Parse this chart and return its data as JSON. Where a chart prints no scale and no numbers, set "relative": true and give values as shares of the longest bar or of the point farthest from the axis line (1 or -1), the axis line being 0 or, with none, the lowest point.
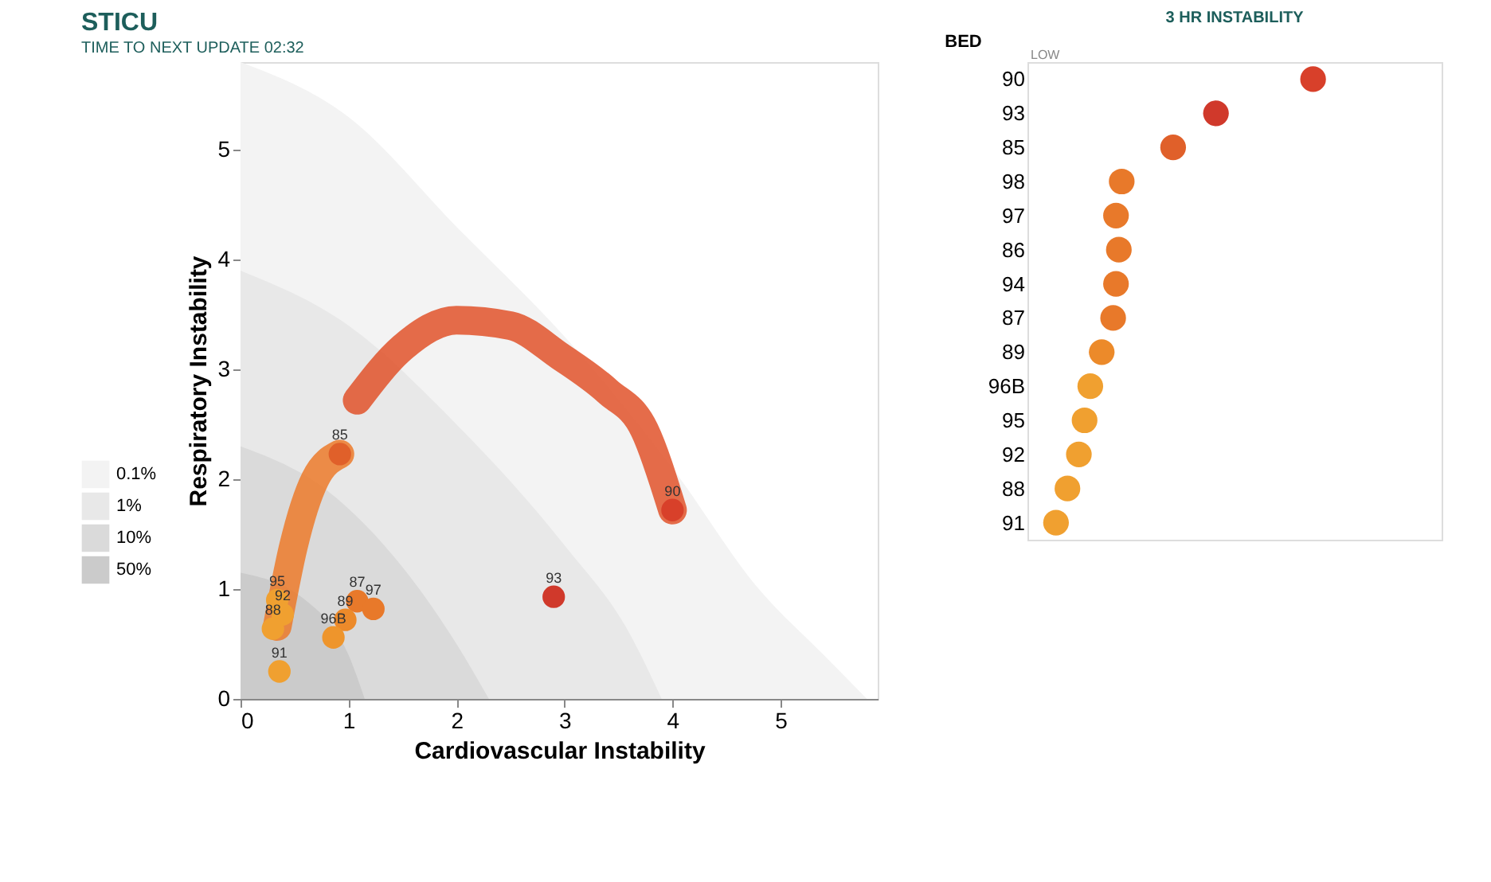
{
  "chart_data": [
    {
      "type": "scatter",
      "title": "STICU",
      "subtitle": "TIME TO NEXT UPDATE 02:32",
      "xlabel": "Cardiovascular Instability",
      "ylabel": "Respiratory Instability",
      "xlim": [
        0,
        5.9
      ],
      "ylim": [
        0,
        5.8
      ],
      "xticks": [
        0,
        1,
        2,
        3,
        4,
        5
      ],
      "yticks": [
        0,
        1,
        2,
        3,
        4,
        5
      ],
      "grid": false,
      "legend": "bottom left",
      "series": [
        {
          "name": "0.1%",
          "type": "area",
          "color": "#f3f3f3",
          "x": [
            0,
            1,
            2,
            3,
            4,
            4.8,
            5.4,
            5.8
          ],
          "values": [
            5.8,
            5.3,
            4.3,
            3.3,
            2.1,
            1.0,
            0.4,
            0
          ]
        },
        {
          "name": "1%",
          "type": "area",
          "color": "#e8e8e8",
          "x": [
            0,
            1,
            2,
            3,
            3.6,
            3.9
          ],
          "values": [
            3.9,
            3.4,
            2.5,
            1.4,
            0.6,
            0
          ]
        },
        {
          "name": "10%",
          "type": "area",
          "color": "#dadada",
          "x": [
            0,
            0.8,
            1.5,
            2.0,
            2.3
          ],
          "values": [
            2.3,
            1.9,
            1.2,
            0.5,
            0
          ]
        },
        {
          "name": "50%",
          "type": "area",
          "color": "#cbcbcb",
          "x": [
            0,
            0.6,
            1.0,
            1.15
          ],
          "values": [
            1.15,
            0.9,
            0.4,
            0
          ]
        },
        {
          "type": "line",
          "color": "#e0522a",
          "x": [
            1.08,
            1.5,
            2.0,
            2.5,
            2.96,
            3.4,
            3.74,
            4.0
          ],
          "values": [
            2.72,
            3.2,
            3.45,
            3.4,
            3.12,
            2.8,
            2.45,
            1.72
          ]
        },
        {
          "type": "line",
          "color": "#ec7a2a",
          "x": [
            0.34,
            0.49,
            0.69,
            0.92
          ],
          "values": [
            0.66,
            1.39,
            2.0,
            2.23
          ]
        },
        {
          "type": "scatter",
          "x": [
            4.0,
            2.9,
            0.92,
            1.08,
            1.23,
            0.97,
            0.86,
            0.34,
            0.39,
            0.3,
            0.36
          ],
          "values": [
            1.72,
            0.93,
            2.23,
            0.89,
            0.82,
            0.72,
            0.56,
            0.9,
            0.77,
            0.64,
            0.25
          ],
          "colors": [
            "#d8402a",
            "#d0392b",
            "#e0602a",
            "#e8792a",
            "#e8792a",
            "#ec8a2a",
            "#ee952c",
            "#f0a030",
            "#f0a030",
            "#f0a030",
            "#f0a030"
          ]
        }
      ],
      "annotations": [
        {
          "text": "90",
          "x": 4.0,
          "y": 1.72
        },
        {
          "text": "93",
          "x": 2.9,
          "y": 0.93
        },
        {
          "text": "85",
          "x": 0.92,
          "y": 2.23
        },
        {
          "text": "87",
          "x": 1.08,
          "y": 0.89
        },
        {
          "text": "97",
          "x": 1.23,
          "y": 0.82
        },
        {
          "text": "89",
          "x": 0.97,
          "y": 0.72
        },
        {
          "text": "96B",
          "x": 0.86,
          "y": 0.56
        },
        {
          "text": "95",
          "x": 0.34,
          "y": 0.9
        },
        {
          "text": "92",
          "x": 0.39,
          "y": 0.77
        },
        {
          "text": "88",
          "x": 0.3,
          "y": 0.64
        },
        {
          "text": "91",
          "x": 0.36,
          "y": 0.25
        }
      ]
    },
    {
      "type": "scatter",
      "orientation": "horizontal",
      "relative": true,
      "title": "3 HR INSTABILITY",
      "ylabel": "BED",
      "annotations": [
        "LOW"
      ],
      "marker": "circle",
      "categories": [
        "90",
        "93",
        "85",
        "98",
        "97",
        "86",
        "94",
        "87",
        "89",
        "96B",
        "95",
        "92",
        "88",
        "91"
      ],
      "values": [
        1,
        0.66,
        0.51,
        0.33,
        0.31,
        0.32,
        0.31,
        0.3,
        0.26,
        0.22,
        0.2,
        0.18,
        0.14,
        0.1
      ],
      "colors": [
        "#d8402a",
        "#d0392b",
        "#e0602a",
        "#e8792a",
        "#e8792a",
        "#e8792a",
        "#e8792a",
        "#e8792a",
        "#ec8a2a",
        "#f0a030",
        "#f0a030",
        "#f0a030",
        "#f0a030",
        "#f0a030"
      ]
    }
  ]
}
